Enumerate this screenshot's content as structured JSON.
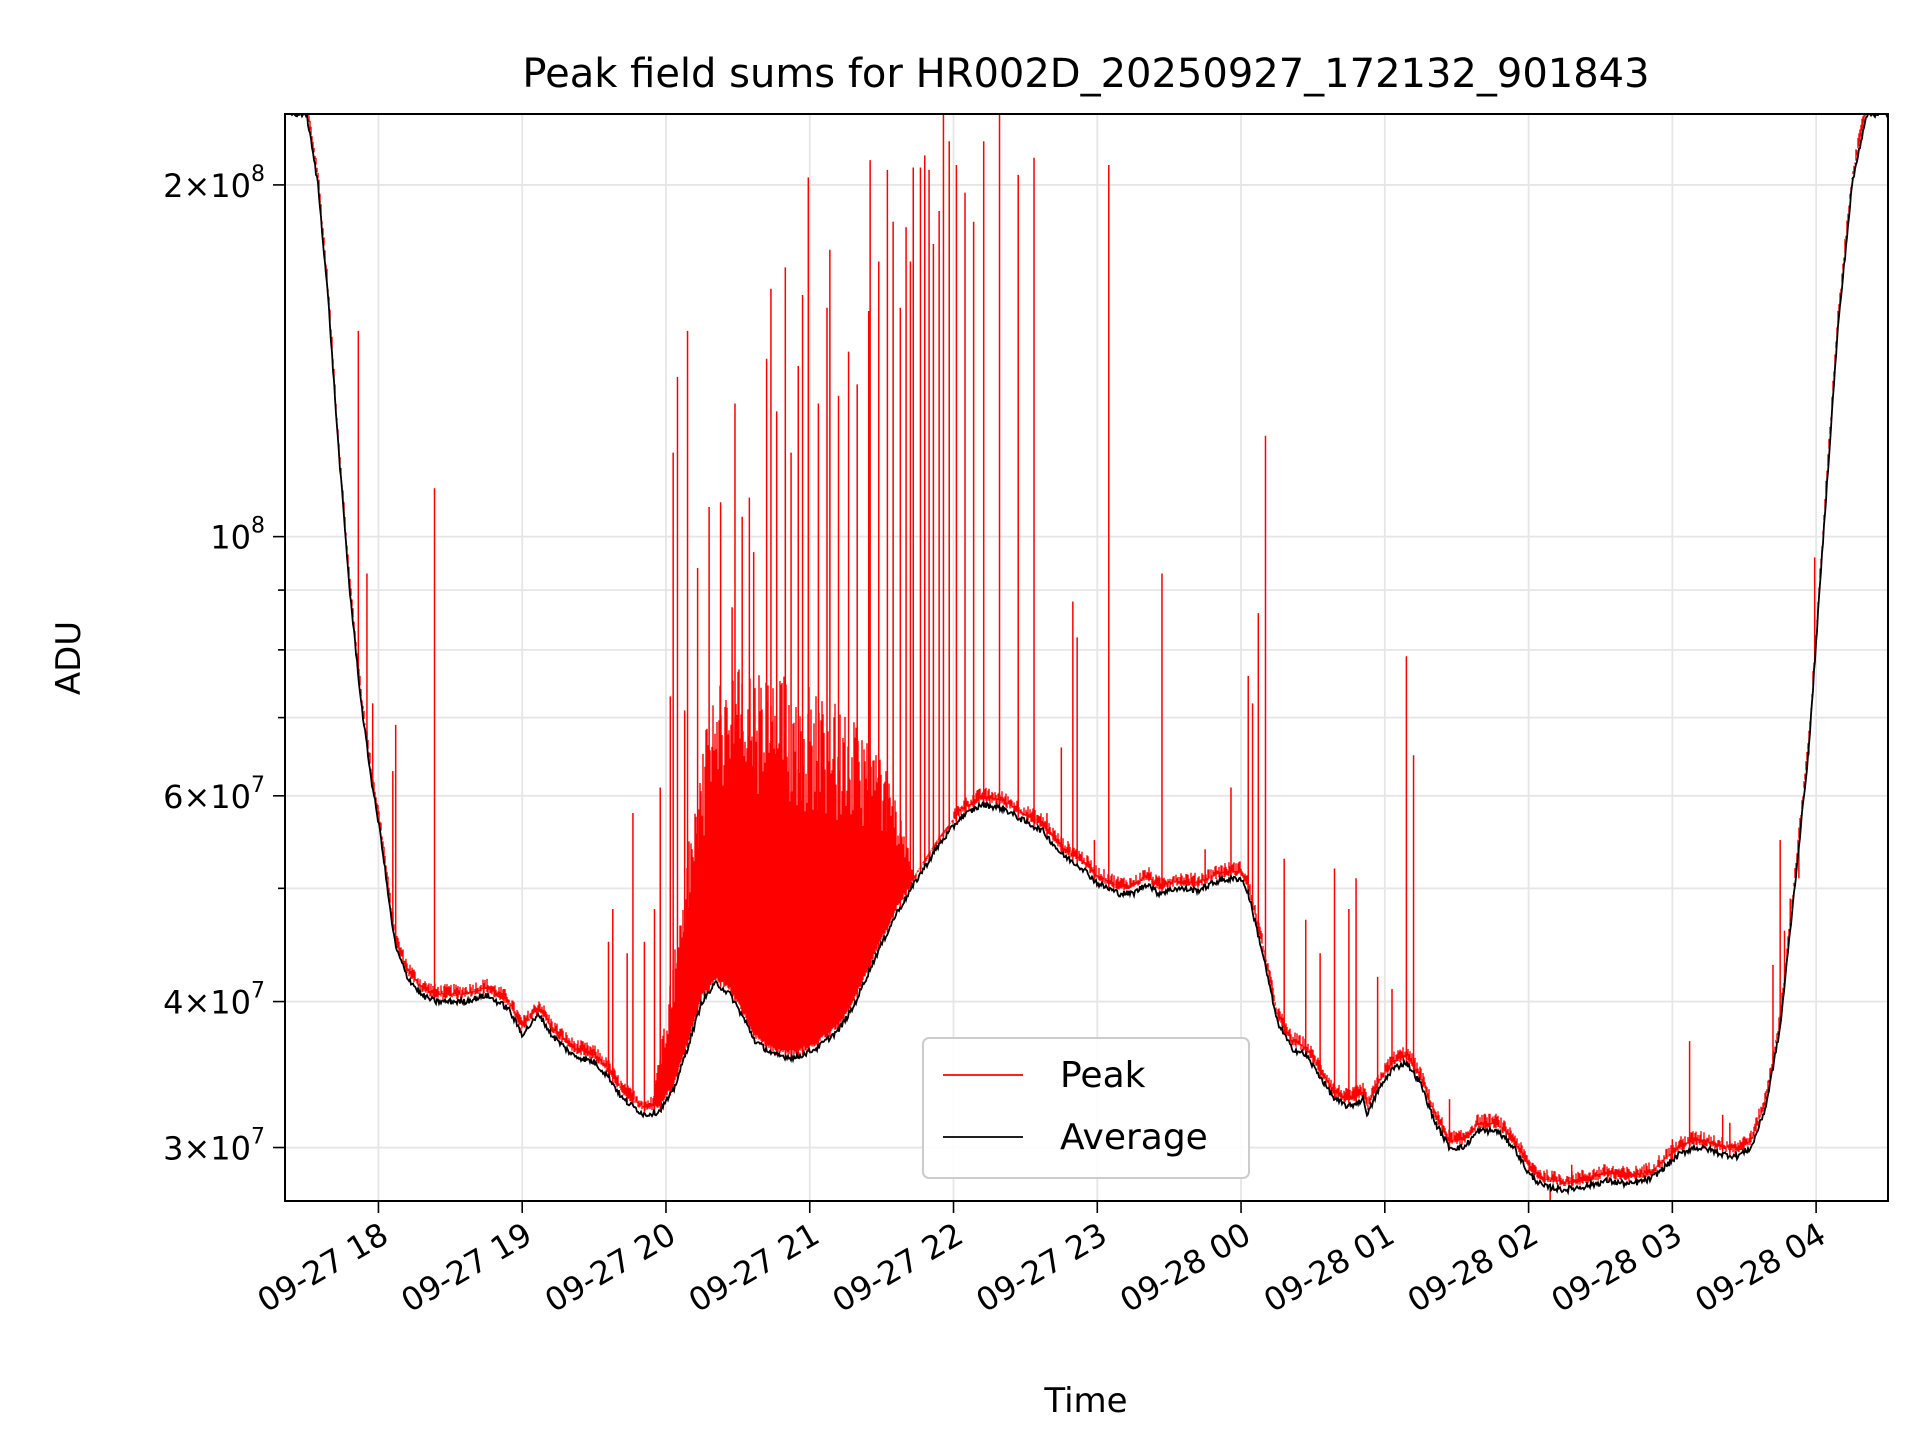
{
  "chart_data": {
    "type": "line",
    "title": "Peak field sums for HR002D_20250927_172132_901843",
    "xlabel": "Time",
    "ylabel": "ADU",
    "yscale": "log",
    "xlim_hours": [
      17.35,
      28.5
    ],
    "ylim": [
      27000000,
      230000000
    ],
    "grid": true,
    "legend_position": "bottom-center",
    "x_ticks": [
      {
        "hour": 18,
        "label": "09-27 18"
      },
      {
        "hour": 19,
        "label": "09-27 19"
      },
      {
        "hour": 20,
        "label": "09-27 20"
      },
      {
        "hour": 21,
        "label": "09-27 21"
      },
      {
        "hour": 22,
        "label": "09-27 22"
      },
      {
        "hour": 23,
        "label": "09-27 23"
      },
      {
        "hour": 24,
        "label": "09-28 00"
      },
      {
        "hour": 25,
        "label": "09-28 01"
      },
      {
        "hour": 26,
        "label": "09-28 02"
      },
      {
        "hour": 27,
        "label": "09-28 03"
      },
      {
        "hour": 28,
        "label": "09-28 04"
      }
    ],
    "y_major_ticks": [
      {
        "value": 30000000,
        "mantissa": "3",
        "exp": "7"
      },
      {
        "value": 40000000,
        "mantissa": "4",
        "exp": "7"
      },
      {
        "value": 60000000,
        "mantissa": "6",
        "exp": "7"
      },
      {
        "value": 100000000,
        "mantissa": "",
        "exp": "8"
      },
      {
        "value": 200000000,
        "mantissa": "2",
        "exp": "8"
      }
    ],
    "y_minor_ticks": [
      50000000,
      70000000,
      80000000,
      90000000
    ],
    "series": [
      {
        "name": "Peak",
        "color": "#ff0000",
        "baseline_offset": 1.015,
        "noisy_band": {
          "start_hour": 19.9,
          "end_hour": 22.0,
          "max_factor": 2.1
        },
        "spikes": [
          [
            17.86,
            150000000
          ],
          [
            17.92,
            93000000
          ],
          [
            17.96,
            72000000
          ],
          [
            18.1,
            63000000
          ],
          [
            18.12,
            69000000
          ],
          [
            18.39,
            110000000
          ],
          [
            18.73,
            41000000
          ],
          [
            18.99,
            38000000
          ],
          [
            19.1,
            39500000
          ],
          [
            19.6,
            45000000
          ],
          [
            19.63,
            48000000
          ],
          [
            19.73,
            44000000
          ],
          [
            19.77,
            58000000
          ],
          [
            19.85,
            45000000
          ],
          [
            19.92,
            48000000
          ],
          [
            19.96,
            61000000
          ],
          [
            20.03,
            73000000
          ],
          [
            20.05,
            118000000
          ],
          [
            20.08,
            137000000
          ],
          [
            20.13,
            71000000
          ],
          [
            20.15,
            150000000
          ],
          [
            20.22,
            94000000
          ],
          [
            20.3,
            106000000
          ],
          [
            20.38,
            107000000
          ],
          [
            20.46,
            87000000
          ],
          [
            20.48,
            130000000
          ],
          [
            20.53,
            104000000
          ],
          [
            20.58,
            108000000
          ],
          [
            20.61,
            97000000
          ],
          [
            20.7,
            142000000
          ],
          [
            20.73,
            163000000
          ],
          [
            20.77,
            128000000
          ],
          [
            20.83,
            170000000
          ],
          [
            20.87,
            118000000
          ],
          [
            20.92,
            140000000
          ],
          [
            20.95,
            161000000
          ],
          [
            20.99,
            203000000
          ],
          [
            21.06,
            130000000
          ],
          [
            21.12,
            157000000
          ],
          [
            21.14,
            176000000
          ],
          [
            21.2,
            132000000
          ],
          [
            21.27,
            144000000
          ],
          [
            21.33,
            135000000
          ],
          [
            21.41,
            156000000
          ],
          [
            21.42,
            210000000
          ],
          [
            21.48,
            172000000
          ],
          [
            21.54,
            206000000
          ],
          [
            21.58,
            186000000
          ],
          [
            21.63,
            157000000
          ],
          [
            21.67,
            184000000
          ],
          [
            21.7,
            172000000
          ],
          [
            21.72,
            207000000
          ],
          [
            21.77,
            207000000
          ],
          [
            21.8,
            212000000
          ],
          [
            21.83,
            206000000
          ],
          [
            21.86,
            178000000
          ],
          [
            21.9,
            190000000
          ],
          [
            21.93,
            232000000
          ],
          [
            21.97,
            218000000
          ],
          [
            22.02,
            208000000
          ],
          [
            22.08,
            197000000
          ],
          [
            22.14,
            186000000
          ],
          [
            22.21,
            218000000
          ],
          [
            22.32,
            232000000
          ],
          [
            22.45,
            204000000
          ],
          [
            22.56,
            211000000
          ],
          [
            22.65,
            58000000
          ],
          [
            22.75,
            66000000
          ],
          [
            22.83,
            88000000
          ],
          [
            22.86,
            82000000
          ],
          [
            22.98,
            55000000
          ],
          [
            23.08,
            208000000
          ],
          [
            23.45,
            93000000
          ],
          [
            23.75,
            54000000
          ],
          [
            23.93,
            61000000
          ],
          [
            24.05,
            76000000
          ],
          [
            24.08,
            72000000
          ],
          [
            24.12,
            86000000
          ],
          [
            24.17,
            122000000
          ],
          [
            24.3,
            53000000
          ],
          [
            24.45,
            47000000
          ],
          [
            24.55,
            44000000
          ],
          [
            24.65,
            52000000
          ],
          [
            24.75,
            48000000
          ],
          [
            24.8,
            51000000
          ],
          [
            24.95,
            42000000
          ],
          [
            25.05,
            41000000
          ],
          [
            25.15,
            79000000
          ],
          [
            25.2,
            65000000
          ],
          [
            25.45,
            33000000
          ],
          [
            25.7,
            32000000
          ],
          [
            26.15,
            27000000
          ],
          [
            26.3,
            29000000
          ],
          [
            26.55,
            28500000
          ],
          [
            26.75,
            28500000
          ],
          [
            27.0,
            30500000
          ],
          [
            27.12,
            37000000
          ],
          [
            27.22,
            30500000
          ],
          [
            27.35,
            32000000
          ],
          [
            27.4,
            31500000
          ],
          [
            27.7,
            43000000
          ],
          [
            27.75,
            55000000
          ],
          [
            27.78,
            46000000
          ],
          [
            27.82,
            49000000
          ],
          [
            27.88,
            51000000
          ],
          [
            27.95,
            65000000
          ],
          [
            27.99,
            96000000
          ]
        ]
      },
      {
        "name": "Average",
        "color": "#000000",
        "points": [
          [
            17.35,
            230000000
          ],
          [
            17.5,
            230000000
          ],
          [
            17.58,
            200000000
          ],
          [
            17.65,
            160000000
          ],
          [
            17.72,
            120000000
          ],
          [
            17.8,
            90000000
          ],
          [
            17.88,
            72000000
          ],
          [
            17.95,
            62000000
          ],
          [
            18.02,
            55000000
          ],
          [
            18.08,
            48000000
          ],
          [
            18.12,
            44500000
          ],
          [
            18.2,
            42000000
          ],
          [
            18.3,
            40500000
          ],
          [
            18.4,
            40000000
          ],
          [
            18.6,
            40000000
          ],
          [
            18.75,
            40500000
          ],
          [
            18.9,
            39500000
          ],
          [
            19.0,
            37500000
          ],
          [
            19.08,
            38500000
          ],
          [
            19.12,
            39000000
          ],
          [
            19.2,
            37500000
          ],
          [
            19.35,
            36000000
          ],
          [
            19.5,
            35500000
          ],
          [
            19.6,
            34500000
          ],
          [
            19.7,
            33000000
          ],
          [
            19.85,
            32000000
          ],
          [
            19.95,
            32200000
          ],
          [
            20.05,
            33500000
          ],
          [
            20.15,
            36500000
          ],
          [
            20.25,
            40000000
          ],
          [
            20.35,
            41500000
          ],
          [
            20.45,
            40500000
          ],
          [
            20.55,
            38500000
          ],
          [
            20.62,
            37000000
          ],
          [
            20.75,
            36000000
          ],
          [
            20.9,
            35800000
          ],
          [
            21.05,
            36500000
          ],
          [
            21.2,
            37800000
          ],
          [
            21.3,
            39500000
          ],
          [
            21.45,
            43500000
          ],
          [
            21.6,
            47500000
          ],
          [
            21.75,
            51000000
          ],
          [
            21.9,
            54500000
          ],
          [
            22.05,
            57500000
          ],
          [
            22.2,
            59000000
          ],
          [
            22.35,
            58500000
          ],
          [
            22.5,
            57000000
          ],
          [
            22.62,
            56000000
          ],
          [
            22.75,
            53500000
          ],
          [
            22.9,
            52000000
          ],
          [
            23.0,
            50500000
          ],
          [
            23.15,
            49500000
          ],
          [
            23.25,
            49500000
          ],
          [
            23.35,
            50500000
          ],
          [
            23.42,
            49500000
          ],
          [
            23.55,
            50000000
          ],
          [
            23.7,
            49800000
          ],
          [
            23.85,
            50800000
          ],
          [
            24.0,
            51000000
          ],
          [
            24.05,
            49500000
          ],
          [
            24.15,
            44000000
          ],
          [
            24.25,
            38500000
          ],
          [
            24.35,
            36500000
          ],
          [
            24.45,
            36000000
          ],
          [
            24.55,
            34500000
          ],
          [
            24.65,
            33000000
          ],
          [
            24.75,
            32500000
          ],
          [
            24.85,
            33000000
          ],
          [
            24.88,
            32000000
          ],
          [
            24.95,
            33500000
          ],
          [
            25.05,
            35000000
          ],
          [
            25.15,
            35500000
          ],
          [
            25.25,
            34000000
          ],
          [
            25.35,
            31500000
          ],
          [
            25.45,
            30000000
          ],
          [
            25.55,
            30000000
          ],
          [
            25.65,
            31000000
          ],
          [
            25.78,
            31000000
          ],
          [
            25.9,
            30000000
          ],
          [
            26.0,
            28500000
          ],
          [
            26.1,
            27800000
          ],
          [
            26.25,
            27600000
          ],
          [
            26.4,
            27800000
          ],
          [
            26.55,
            28100000
          ],
          [
            26.7,
            27900000
          ],
          [
            26.85,
            28200000
          ],
          [
            26.95,
            28900000
          ],
          [
            27.05,
            29600000
          ],
          [
            27.15,
            30000000
          ],
          [
            27.25,
            29900000
          ],
          [
            27.35,
            29600000
          ],
          [
            27.45,
            29500000
          ],
          [
            27.55,
            30000000
          ],
          [
            27.65,
            32500000
          ],
          [
            27.75,
            38000000
          ],
          [
            27.85,
            50000000
          ],
          [
            27.95,
            66000000
          ],
          [
            28.05,
            100000000
          ],
          [
            28.15,
            150000000
          ],
          [
            28.25,
            200000000
          ],
          [
            28.35,
            230000000
          ],
          [
            28.5,
            230000000
          ]
        ]
      }
    ]
  }
}
